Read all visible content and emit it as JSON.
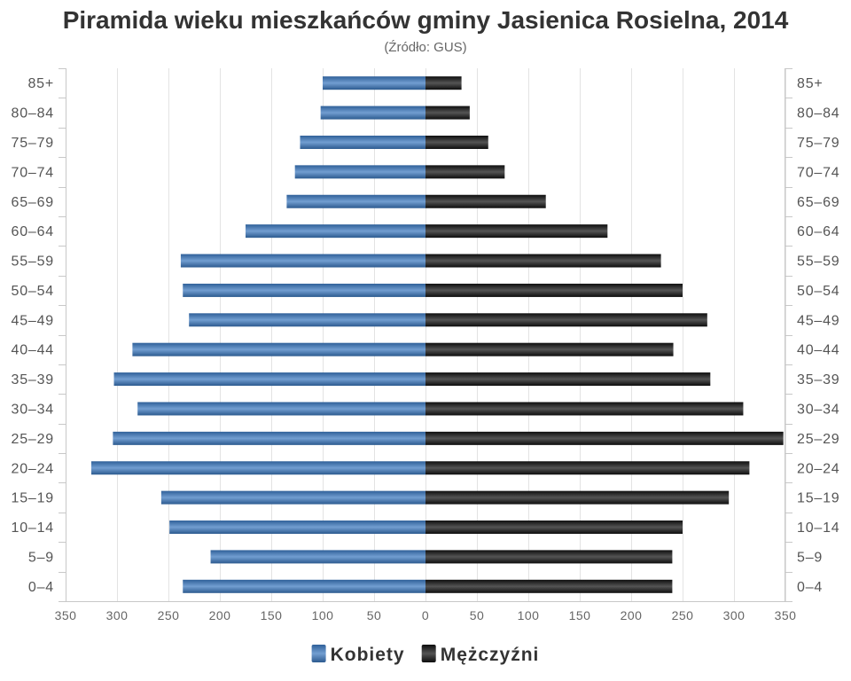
{
  "chart_data": {
    "type": "bar",
    "orientation": "horizontal",
    "title": "Piramida wieku mieszkańców gminy Jasienica Rosielna, 2014",
    "subtitle": "(Źródło: GUS)",
    "categories": [
      "85+",
      "80–84",
      "75–79",
      "70–74",
      "65–69",
      "60–64",
      "55–59",
      "50–54",
      "45–49",
      "40–44",
      "35–39",
      "30–34",
      "25–29",
      "20–24",
      "15–19",
      "10–14",
      "5–9",
      "0–4"
    ],
    "category_labels": "both sides",
    "series": [
      {
        "name": "Kobiety",
        "color": "#3b78bf",
        "side": "left",
        "values": [
          100,
          102,
          122,
          127,
          135,
          175,
          238,
          236,
          230,
          285,
          303,
          280,
          304,
          325,
          257,
          249,
          209,
          236
        ]
      },
      {
        "name": "Mężczyźni",
        "color": "#111111",
        "side": "right",
        "values": [
          35,
          43,
          61,
          77,
          117,
          177,
          229,
          250,
          274,
          241,
          277,
          309,
          348,
          315,
          295,
          250,
          240,
          240
        ]
      }
    ],
    "xlim": [
      -350,
      350
    ],
    "x_tick_labels": [
      "350",
      "300",
      "250",
      "200",
      "150",
      "100",
      "50",
      "0",
      "50",
      "100",
      "150",
      "200",
      "250",
      "300",
      "350"
    ],
    "grid": true,
    "legend": "bottom-center"
  }
}
